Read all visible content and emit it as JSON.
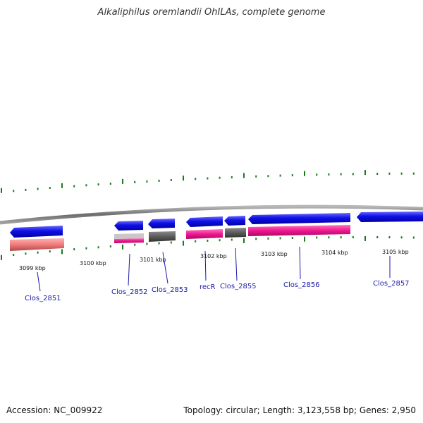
{
  "title": "Alkaliphilus oremlandii OhILAs, complete genome",
  "footer": {
    "accession": "Accession: NC_009922",
    "topology": "Topology: circular; Length: 3,123,558 bp; Genes: 2,950"
  },
  "colors": {
    "forward_gene": "#1010e8",
    "rna_pink": "#f01890",
    "rna_salmon": "#f07c7c",
    "rna_gray": "#5c5c5c",
    "rna_lightgray": "#c8c8c8",
    "backbone": "#888888",
    "tick": "#1a7a1a",
    "gene_label": "#1a1aa8"
  },
  "kbp_labels": [
    "3099 kbp",
    "3100 kbp",
    "3101 kbp",
    "3102 kbp",
    "3103 kbp",
    "3104 kbp",
    "3105 kbp"
  ],
  "genes": [
    {
      "name": "Clos_2851"
    },
    {
      "name": "Clos_2852"
    },
    {
      "name": "Clos_2853"
    },
    {
      "name": "recR"
    },
    {
      "name": "Clos_2855"
    },
    {
      "name": "Clos_2856"
    },
    {
      "name": "Clos_2857"
    }
  ]
}
